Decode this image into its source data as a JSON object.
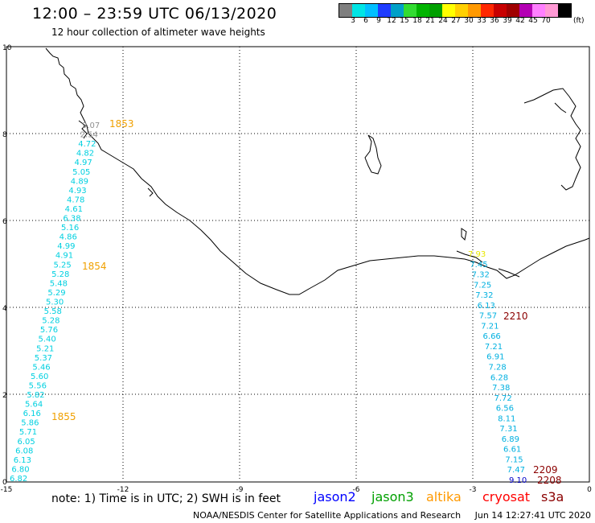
{
  "header": {
    "title": "12:00 – 23:59 UTC 06/13/2020",
    "subtitle": "12 hour collection of altimeter wave heights"
  },
  "scale": {
    "colors": [
      "#7f7f7f",
      "#00e5e5",
      "#00bfff",
      "#1e3cff",
      "#00a0c8",
      "#32dc32",
      "#00b400",
      "#00a000",
      "#ffff00",
      "#ffd000",
      "#ff9900",
      "#ff2800",
      "#c80000",
      "#a00000",
      "#b400b4",
      "#ff7fff",
      "#ff9ad5",
      "#000000"
    ],
    "labels": [
      "3",
      "6",
      "9",
      "12",
      "15",
      "18",
      "21",
      "24",
      "27",
      "30",
      "33",
      "36",
      "39",
      "42",
      "45",
      "70"
    ],
    "unit": "(ft)"
  },
  "axes": {
    "x_ticks": [
      "-15",
      "-12",
      "-9",
      "-6",
      "-3",
      "0"
    ],
    "y_ticks": [
      "0",
      "2",
      "4",
      "6",
      "8",
      "10"
    ]
  },
  "tracks": {
    "left": {
      "times": [
        {
          "label": "1853",
          "color": "#f0a000"
        },
        {
          "label": "1854",
          "color": "#f0a000"
        },
        {
          "label": "1855",
          "color": "#f0a000"
        }
      ],
      "points": [
        {
          "v": "9.07",
          "c": "#909090"
        },
        {
          "v": "2.54",
          "c": "#909090"
        },
        {
          "v": "4.72",
          "c": "#00d0e0"
        },
        {
          "v": "4.82",
          "c": "#00d0e0"
        },
        {
          "v": "4.97",
          "c": "#00d0e0"
        },
        {
          "v": "5.05",
          "c": "#00d0e0"
        },
        {
          "v": "4.89",
          "c": "#00d0e0"
        },
        {
          "v": "4.93",
          "c": "#00d0e0"
        },
        {
          "v": "4.78",
          "c": "#00d0e0"
        },
        {
          "v": "4.61",
          "c": "#00d0e0"
        },
        {
          "v": "6.38",
          "c": "#00d0e0"
        },
        {
          "v": "5.16",
          "c": "#00d0e0"
        },
        {
          "v": "4.86",
          "c": "#00d0e0"
        },
        {
          "v": "4.99",
          "c": "#00d0e0"
        },
        {
          "v": "4.91",
          "c": "#00d0e0"
        },
        {
          "v": "5.25",
          "c": "#00d0e0"
        },
        {
          "v": "5.28",
          "c": "#00d0e0"
        },
        {
          "v": "5.48",
          "c": "#00d0e0"
        },
        {
          "v": "5.29",
          "c": "#00d0e0"
        },
        {
          "v": "5.30",
          "c": "#00d0e0"
        },
        {
          "v": "5.58",
          "c": "#00d0e0"
        },
        {
          "v": "5.28",
          "c": "#00d0e0"
        },
        {
          "v": "5.76",
          "c": "#00d0e0"
        },
        {
          "v": "5.40",
          "c": "#00d0e0"
        },
        {
          "v": "5.21",
          "c": "#00d0e0"
        },
        {
          "v": "5.37",
          "c": "#00d0e0"
        },
        {
          "v": "5.46",
          "c": "#00d0e0"
        },
        {
          "v": "5.60",
          "c": "#00d0e0"
        },
        {
          "v": "5.56",
          "c": "#00d0e0"
        },
        {
          "v": "5.82",
          "c": "#00d0e0"
        },
        {
          "v": "5.64",
          "c": "#00d0e0"
        },
        {
          "v": "6.16",
          "c": "#00d0e0"
        },
        {
          "v": "5.86",
          "c": "#00d0e0"
        },
        {
          "v": "5.71",
          "c": "#00d0e0"
        },
        {
          "v": "6.05",
          "c": "#00d0e0"
        },
        {
          "v": "6.08",
          "c": "#00d0e0"
        },
        {
          "v": "6.13",
          "c": "#00d0e0"
        },
        {
          "v": "6.80",
          "c": "#00d0e0"
        },
        {
          "v": "6.82",
          "c": "#00d0e0"
        }
      ]
    },
    "right": {
      "times": [
        {
          "label": "2210",
          "color": "#8b0000"
        },
        {
          "label": "2209",
          "color": "#8b0000"
        },
        {
          "label": "2208",
          "color": "#8b0000"
        }
      ],
      "points": [
        {
          "v": "7.93",
          "c": "#e8e800"
        },
        {
          "v": "7.45",
          "c": "#00b0e0"
        },
        {
          "v": "7.32",
          "c": "#00b0e0"
        },
        {
          "v": "7.25",
          "c": "#00b0e0"
        },
        {
          "v": "7.32",
          "c": "#00b0e0"
        },
        {
          "v": "6.13",
          "c": "#00b0e0"
        },
        {
          "v": "7.57",
          "c": "#00b0e0"
        },
        {
          "v": "7.21",
          "c": "#00b0e0"
        },
        {
          "v": "6.66",
          "c": "#00b0e0"
        },
        {
          "v": "7.21",
          "c": "#00b0e0"
        },
        {
          "v": "6.91",
          "c": "#00b0e0"
        },
        {
          "v": "7.28",
          "c": "#00b0e0"
        },
        {
          "v": "6.28",
          "c": "#00b0e0"
        },
        {
          "v": "7.38",
          "c": "#00b0e0"
        },
        {
          "v": "7.72",
          "c": "#00b0e0"
        },
        {
          "v": "6.56",
          "c": "#00b0e0"
        },
        {
          "v": "8.11",
          "c": "#00b0e0"
        },
        {
          "v": "7.31",
          "c": "#00b0e0"
        },
        {
          "v": "6.89",
          "c": "#00b0e0"
        },
        {
          "v": "6.61",
          "c": "#00b0e0"
        },
        {
          "v": "7.15",
          "c": "#00b0e0"
        },
        {
          "v": "7.47",
          "c": "#00b0e0"
        },
        {
          "v": "9.10",
          "c": "#0000c8"
        }
      ]
    }
  },
  "footer": {
    "note": "note: 1) Time is in UTC; 2) SWH is in feet",
    "satellites": [
      {
        "name": "jason2",
        "color": "#0000ff"
      },
      {
        "name": "jason3",
        "color": "#00a000"
      },
      {
        "name": "altika",
        "color": "#ff9900"
      },
      {
        "name": "cryosat",
        "color": "#ff0000"
      },
      {
        "name": "s3a",
        "color": "#8b0000"
      }
    ],
    "credit": "NOAA/NESDIS Center for Satellite Applications and Research",
    "timestamp": "Jun 14 12:27:41 UTC 2020"
  }
}
